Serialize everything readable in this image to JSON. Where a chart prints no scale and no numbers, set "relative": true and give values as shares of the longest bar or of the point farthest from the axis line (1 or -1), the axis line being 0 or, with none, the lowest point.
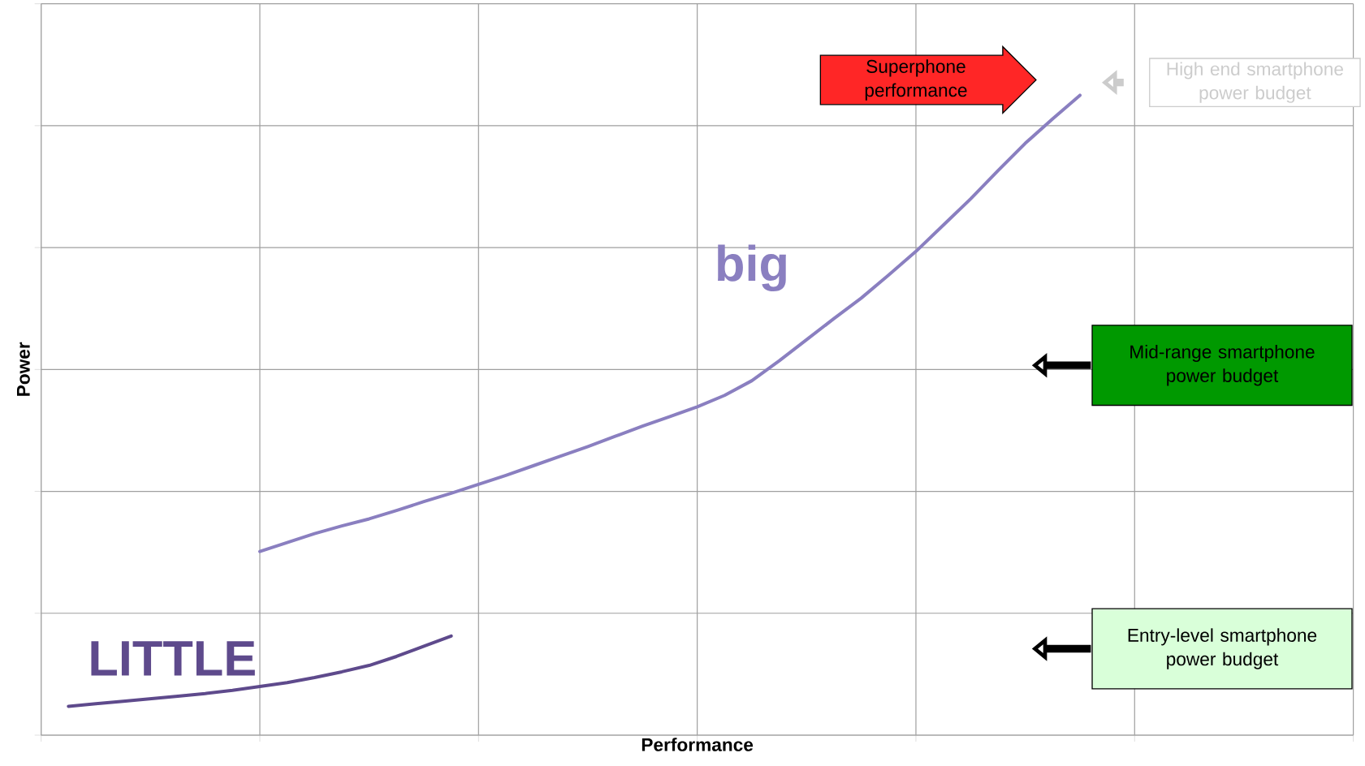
{
  "chart_data": {
    "type": "line",
    "relative": true,
    "xlabel": "Performance",
    "ylabel": "Power",
    "grid": true,
    "line_style": "solid",
    "categories": [
      null,
      null,
      null,
      null,
      null,
      null,
      null,
      null,
      null,
      null,
      null,
      null,
      null,
      null,
      null,
      null,
      null,
      null,
      null,
      null,
      null,
      null,
      null,
      null,
      null,
      null,
      null,
      null,
      null,
      null,
      null,
      null,
      null,
      null,
      null,
      null,
      null,
      null,
      null,
      null,
      null,
      null,
      null,
      null,
      null,
      null,
      null,
      null,
      null
    ],
    "series": [
      {
        "name": "LITTLE",
        "color": "#5e4a8c",
        "values": [
          null,
          0.045,
          0.049,
          0.053,
          0.057,
          0.061,
          0.065,
          0.07,
          0.076,
          0.082,
          0.09,
          0.099,
          0.109,
          0.123,
          0.139,
          0.155,
          null,
          null,
          null,
          null,
          null,
          null,
          null,
          null,
          null,
          null,
          null,
          null,
          null,
          null,
          null,
          null,
          null,
          null,
          null,
          null,
          null,
          null,
          null,
          null,
          null,
          null,
          null,
          null,
          null,
          null,
          null,
          null,
          null
        ]
      },
      {
        "name": "big",
        "color": "#8a7fc0",
        "values": [
          null,
          null,
          null,
          null,
          null,
          null,
          null,
          null,
          0.287,
          0.301,
          0.315,
          0.327,
          0.338,
          0.351,
          0.365,
          0.378,
          0.392,
          0.406,
          0.421,
          0.436,
          0.451,
          0.467,
          0.483,
          0.498,
          0.513,
          0.531,
          0.554,
          0.585,
          0.618,
          0.651,
          0.683,
          0.719,
          0.756,
          0.797,
          0.838,
          0.882,
          0.925,
          0.963,
          1.0,
          null,
          null,
          null,
          null,
          null,
          null,
          null,
          null,
          null,
          null
        ]
      }
    ],
    "annotations": [
      "Superphone performance",
      "High end smartphone power budget",
      "Mid-range smartphone power budget",
      "Entry-level smartphone power budget"
    ]
  }
}
